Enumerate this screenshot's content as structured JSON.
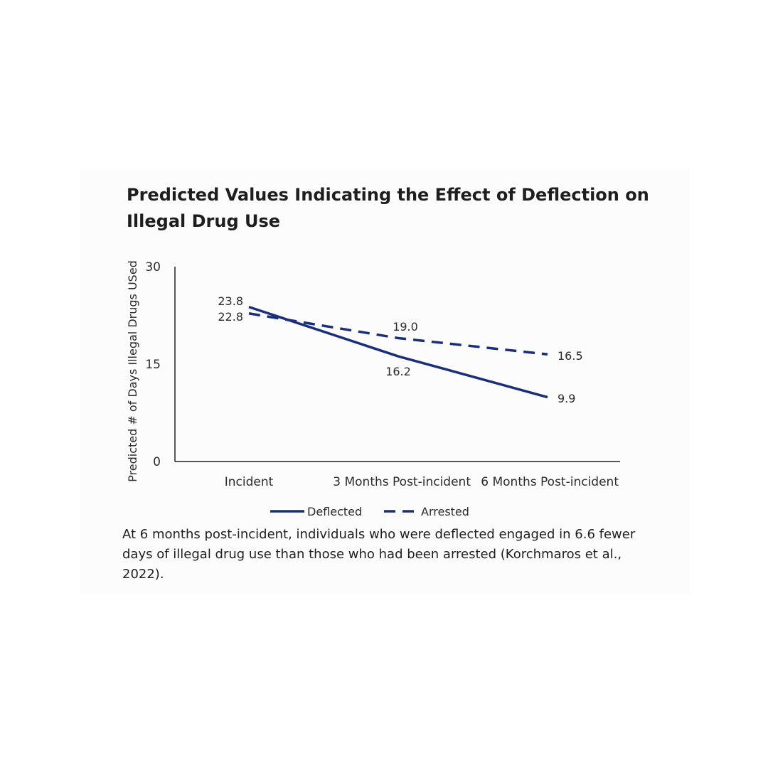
{
  "chart_data": {
    "type": "line",
    "title": "Predicted Values Indicating the Effect of Deflection on Illegal Drug Use",
    "ylabel": "Predicted # of Days Illegal Drugs USed",
    "xlabel": "",
    "ylim": [
      0,
      30
    ],
    "yticks": [
      "0",
      "15",
      "30"
    ],
    "categories": [
      "Incident",
      "3 Months Post-incident",
      "6 Months Post-incident"
    ],
    "series": [
      {
        "name": "Deflected",
        "values": [
          23.8,
          16.2,
          9.9
        ],
        "labels": [
          "23.8",
          "16.2",
          "9.9"
        ],
        "style": "solid",
        "color": "#1a2f7a"
      },
      {
        "name": "Arrested",
        "values": [
          22.8,
          19.0,
          16.5
        ],
        "labels": [
          "22.8",
          "19.0",
          "16.5"
        ],
        "style": "dashed",
        "color": "#1a2f7a"
      }
    ],
    "grid": false,
    "legend_position": "bottom"
  },
  "caption": "At 6 months post-incident, individuals who were deflected engaged in 6.6 fewer days of illegal drug use than those who had been arrested (Korchmaros et al., 2022)."
}
